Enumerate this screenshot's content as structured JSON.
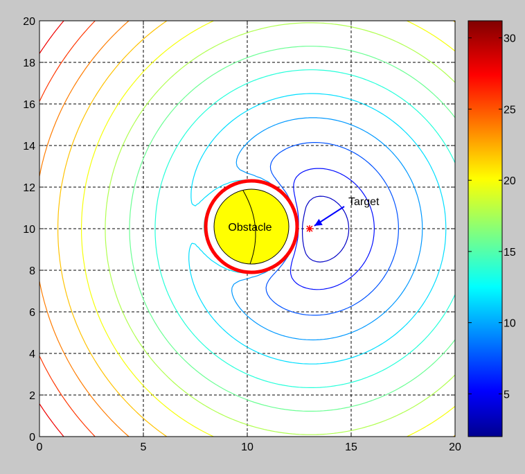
{
  "chart_data": {
    "type": "contour",
    "title": "",
    "xlabel": "",
    "ylabel": "",
    "xlim": [
      0,
      20
    ],
    "ylim": [
      0,
      20
    ],
    "grid": true,
    "x_ticks": [
      0,
      5,
      10,
      15,
      20
    ],
    "y_ticks": [
      0,
      2,
      4,
      6,
      8,
      10,
      12,
      14,
      16,
      18,
      20
    ],
    "colormap": "jet",
    "colorbar": {
      "range": [
        2,
        31.2
      ],
      "ticks": [
        5,
        10,
        15,
        20,
        25,
        30
      ]
    },
    "obstacle": {
      "label": "Obstacle",
      "center": [
        10.2,
        10.1
      ],
      "radius": 1.8,
      "fill": "#ffff00"
    },
    "target": {
      "label": "Target",
      "point": [
        13,
        10
      ],
      "arrow_from": [
        15,
        11.2
      ],
      "color": "#0000ff",
      "marker_color": "#ff0000"
    },
    "contour_levels": [
      4,
      6,
      8,
      10,
      12,
      14,
      16,
      18,
      20,
      22,
      24,
      26,
      28,
      30
    ]
  }
}
